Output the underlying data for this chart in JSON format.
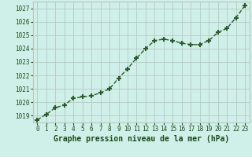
{
  "x": [
    0,
    1,
    2,
    3,
    4,
    5,
    6,
    7,
    8,
    9,
    10,
    11,
    12,
    13,
    14,
    15,
    16,
    17,
    18,
    19,
    20,
    21,
    22,
    23
  ],
  "y": [
    1018.7,
    1019.1,
    1019.6,
    1019.8,
    1020.3,
    1020.4,
    1020.5,
    1020.7,
    1021.0,
    1021.8,
    1022.5,
    1023.3,
    1024.0,
    1024.6,
    1024.7,
    1024.6,
    1024.4,
    1024.3,
    1024.3,
    1024.6,
    1025.2,
    1025.5,
    1026.3,
    1027.2
  ],
  "line_color": "#2d5a2d",
  "marker": "+",
  "marker_size": 5,
  "marker_lw": 1.5,
  "bg_color": "#cff0e8",
  "grid_color": "#b8c8c0",
  "xlabel": "Graphe pression niveau de la mer (hPa)",
  "ylim": [
    1018.5,
    1027.5
  ],
  "xlim": [
    -0.5,
    23.5
  ],
  "yticks": [
    1019,
    1020,
    1021,
    1022,
    1023,
    1024,
    1025,
    1026,
    1027
  ],
  "xticks": [
    0,
    1,
    2,
    3,
    4,
    5,
    6,
    7,
    8,
    9,
    10,
    11,
    12,
    13,
    14,
    15,
    16,
    17,
    18,
    19,
    20,
    21,
    22,
    23
  ],
  "tick_fontsize": 5.5,
  "xlabel_fontsize": 7,
  "label_color": "#1a4a1a",
  "line_width": 1.0,
  "line_style": "--"
}
